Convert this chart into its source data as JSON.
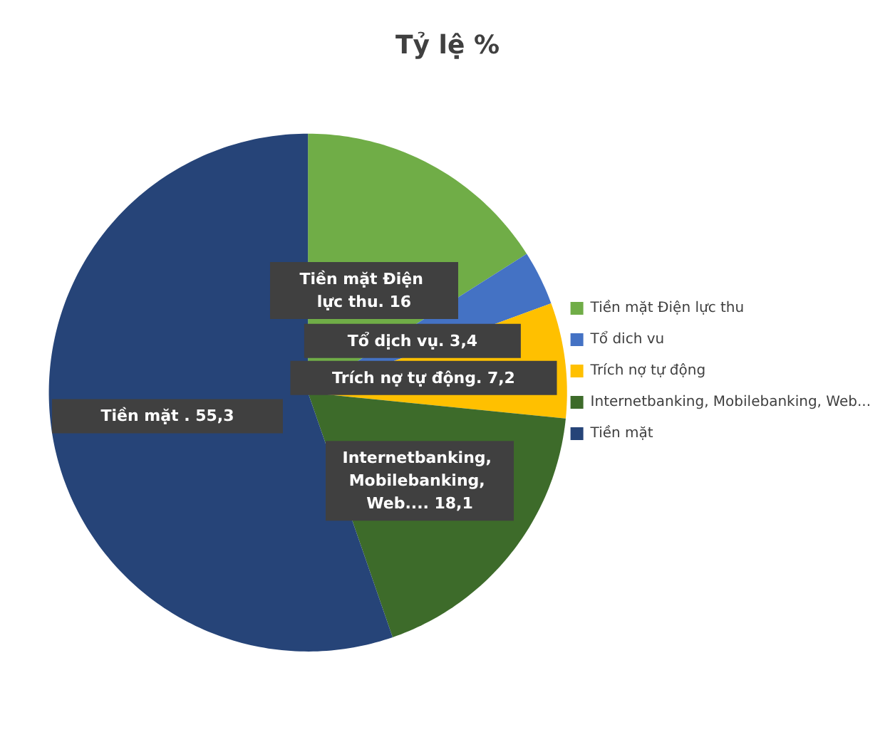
{
  "chart_data": {
    "type": "pie",
    "title": "Tỷ lệ %",
    "categories": [
      "Tiền mặt Điện lực thu",
      "Tổ dich vu",
      "Trích nợ tự động",
      "Internetbanking, Mobilebanking, Web...",
      "Tiền mặt"
    ],
    "values": [
      16,
      3.4,
      7.2,
      18.1,
      55.3
    ],
    "value_labels": [
      "Tiền mặt Điện lực thu. 16",
      "Tổ dịch vụ. 3,4",
      "Trích nợ tự động. 7,2",
      "Internetbanking, Mobilebanking, Web.... 18,1",
      "Tiền mặt . 55,3"
    ],
    "colors": [
      "#70ad47",
      "#4472c4",
      "#ffc000",
      "#3d6b2a",
      "#264478"
    ],
    "legend": "right"
  }
}
